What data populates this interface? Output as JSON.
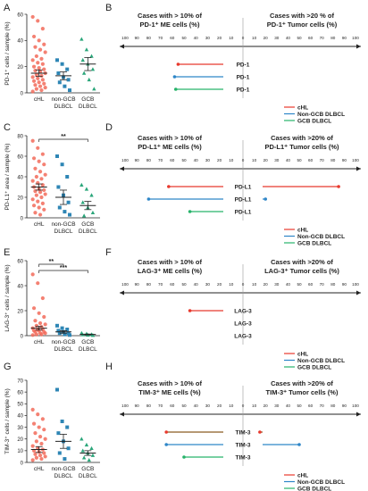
{
  "chart_data": [
    {
      "panel": "A",
      "type": "scatter",
      "ylabel": "PD-1⁺ cells / sample (%)",
      "ylim": [
        0,
        60
      ],
      "yticks": [
        0,
        20,
        40,
        60
      ],
      "categories": [
        "cHL",
        "non-GCB DLBCL",
        "GCB DLBCL"
      ],
      "colors": [
        "#f26b5b",
        "#2e86b5",
        "#2aa67a"
      ],
      "significance": [],
      "series": [
        {
          "values": [
            58,
            55,
            49,
            43,
            40,
            37,
            35,
            33,
            31,
            28,
            26,
            25,
            23,
            22,
            20,
            19,
            18,
            17,
            16,
            15,
            14,
            13,
            12,
            11,
            10,
            9,
            8,
            7,
            6,
            5,
            4,
            3,
            2,
            1
          ],
          "mean": 15,
          "sem": 2.5
        },
        {
          "values": [
            25,
            22,
            18,
            15,
            12,
            10,
            8,
            5,
            2
          ],
          "mean": 13,
          "sem": 3
        },
        {
          "values": [
            41,
            33,
            28,
            25,
            22,
            18,
            15,
            10,
            3
          ],
          "mean": 22,
          "sem": 5
        }
      ]
    },
    {
      "panel": "B",
      "type": "bar",
      "left_header": [
        "Cases with > 10% of",
        "PD-1⁺ ME cells (%)"
      ],
      "right_header": [
        "Cases with >20 % of",
        "PD-1⁺ Tumor cells (%)"
      ],
      "left_ticks": [
        100,
        90,
        80,
        70,
        60,
        50,
        40,
        30,
        20,
        10,
        0
      ],
      "right_ticks": [
        10,
        20,
        30,
        40,
        50,
        60,
        70,
        80,
        90,
        100
      ],
      "bars": [
        {
          "label": "PD-1",
          "left": 55,
          "right": 0,
          "color": "#e8392d"
        },
        {
          "label": "PD-1",
          "left": 58,
          "right": 0,
          "color": "#2e86c8"
        },
        {
          "label": "PD-1",
          "left": 57,
          "right": 0,
          "color": "#27b36a"
        }
      ],
      "legend": [
        {
          "name": "cHL",
          "color": "#e8392d"
        },
        {
          "name": "Non-GCB DLBCL",
          "color": "#2e86c8"
        },
        {
          "name": "GCB DLBCL",
          "color": "#27b36a"
        }
      ]
    },
    {
      "panel": "C",
      "type": "scatter",
      "ylabel": "PD-L1⁺ area / sample (%)",
      "ylim": [
        0,
        80
      ],
      "yticks": [
        0,
        20,
        40,
        60,
        80
      ],
      "categories": [
        "cHL",
        "non-GCB DLBCL",
        "GCB DLBCL"
      ],
      "colors": [
        "#f26b5b",
        "#2e86b5",
        "#2aa67a"
      ],
      "significance": [
        {
          "from": 0,
          "to": 2,
          "label": "**"
        }
      ],
      "series": [
        {
          "values": [
            75,
            68,
            62,
            58,
            55,
            52,
            48,
            45,
            42,
            40,
            38,
            36,
            34,
            32,
            30,
            28,
            27,
            26,
            25,
            23,
            22,
            20,
            18,
            16,
            14,
            12,
            10,
            8,
            5,
            3
          ],
          "mean": 30,
          "sem": 3
        },
        {
          "values": [
            60,
            52,
            40,
            30,
            22,
            15,
            10,
            6,
            3
          ],
          "mean": 20,
          "sem": 7
        },
        {
          "values": [
            32,
            28,
            22,
            15,
            10,
            5,
            2
          ],
          "mean": 12,
          "sem": 4
        }
      ]
    },
    {
      "panel": "D",
      "type": "bar",
      "left_header": [
        "Cases with > 10% of",
        "PD-L1⁺ ME cells (%)"
      ],
      "right_header": [
        "Cases with >20% of",
        "PD-L1⁺ Tumor cells (%)"
      ],
      "left_ticks": [
        100,
        90,
        80,
        70,
        60,
        50,
        40,
        30,
        20,
        10,
        0
      ],
      "right_ticks": [
        10,
        20,
        30,
        40,
        50,
        60,
        70,
        80,
        90,
        100
      ],
      "bars": [
        {
          "label": "PD-L1",
          "left": 63,
          "right": 85,
          "color": "#e8392d"
        },
        {
          "label": "PD-L1",
          "left": 80,
          "right": 20,
          "color": "#2e86c8"
        },
        {
          "label": "PD-L1",
          "left": 45,
          "right": 0,
          "color": "#27b36a"
        }
      ],
      "legend": [
        {
          "name": "cHL",
          "color": "#e8392d"
        },
        {
          "name": "Non-GCB DLBCL",
          "color": "#2e86c8"
        },
        {
          "name": "GCB DLBCL",
          "color": "#27b36a"
        }
      ]
    },
    {
      "panel": "E",
      "type": "scatter",
      "ylabel": "LAG-3⁺ cells / sample (%)",
      "ylim": [
        0,
        60
      ],
      "yticks": [
        0,
        20,
        40,
        60
      ],
      "categories": [
        "cHL",
        "non-GCB DLBCL",
        "GCB DLBCL"
      ],
      "colors": [
        "#f26b5b",
        "#2e86b5",
        "#2aa67a"
      ],
      "significance": [
        {
          "from": 0,
          "to": 1,
          "label": "**"
        },
        {
          "from": 0,
          "to": 2,
          "label": "***"
        }
      ],
      "series": [
        {
          "values": [
            49,
            42,
            30,
            22,
            18,
            15,
            12,
            10,
            9,
            8,
            7,
            6,
            5,
            5,
            4,
            4,
            3,
            3,
            2,
            2,
            1,
            1,
            0.5
          ],
          "mean": 6,
          "sem": 1.5
        },
        {
          "values": [
            8,
            6,
            5,
            4,
            3,
            2,
            2,
            1,
            0.5
          ],
          "mean": 3,
          "sem": 1
        },
        {
          "values": [
            2,
            1.5,
            1,
            0.8,
            0.5,
            0.3
          ],
          "mean": 1,
          "sem": 0.3
        }
      ]
    },
    {
      "panel": "F",
      "type": "bar",
      "left_header": [
        "Cases with > 10% of",
        "LAG-3⁺ ME cells (%)"
      ],
      "right_header": [
        "Cases with >20% of",
        "LAG-3⁺ Tumor cells (%)"
      ],
      "left_ticks": [
        100,
        90,
        80,
        70,
        60,
        50,
        40,
        30,
        20,
        10,
        0
      ],
      "right_ticks": [
        10,
        20,
        30,
        40,
        50,
        60,
        70,
        80,
        90,
        100
      ],
      "bars": [
        {
          "label": "LAG-3",
          "left": 45,
          "right": 0,
          "color": "#e8392d"
        },
        {
          "label": "LAG-3",
          "left": 0,
          "right": 0,
          "color": "#2e86c8"
        },
        {
          "label": "LAG-3",
          "left": 0,
          "right": 0,
          "color": "#27b36a"
        }
      ],
      "legend": [
        {
          "name": "cHL",
          "color": "#e8392d"
        },
        {
          "name": "Non-GCB DLBCL",
          "color": "#2e86c8"
        },
        {
          "name": "GCB DLBCL",
          "color": "#27b36a"
        }
      ]
    },
    {
      "panel": "G",
      "type": "scatter",
      "ylabel": "TIM-3⁺ cells / sample (%)",
      "ylim": [
        0,
        70
      ],
      "yticks": [
        0,
        10,
        20,
        30,
        40,
        50,
        60,
        70
      ],
      "categories": [
        "cHL",
        "non-GCB DLBCL",
        "GCB DLBCL"
      ],
      "colors": [
        "#f26b5b",
        "#2e86b5",
        "#2aa67a"
      ],
      "significance": [],
      "series": [
        {
          "values": [
            45,
            41,
            37,
            33,
            30,
            28,
            25,
            22,
            20,
            18,
            16,
            14,
            12,
            11,
            10,
            9,
            8,
            7,
            6,
            5,
            4,
            3,
            2
          ],
          "mean": 11,
          "sem": 2.5
        },
        {
          "values": [
            62,
            35,
            30,
            25,
            18,
            12,
            8,
            3
          ],
          "mean": 18,
          "sem": 6
        },
        {
          "values": [
            20,
            15,
            12,
            10,
            8,
            6,
            4,
            2
          ],
          "mean": 8,
          "sem": 2
        }
      ]
    },
    {
      "panel": "H",
      "type": "bar",
      "left_header": [
        "Cases with > 10% of",
        "TIM-3⁺ ME cells (%)"
      ],
      "right_header": [
        "Cases with >20% of",
        "TIM-3⁺ Tumor cells (%)"
      ],
      "left_ticks": [
        100,
        90,
        80,
        70,
        60,
        50,
        40,
        30,
        20,
        10,
        0
      ],
      "right_ticks": [
        10,
        20,
        30,
        40,
        50,
        60,
        70,
        80,
        90,
        100
      ],
      "bars": [
        {
          "label": "TIM-3",
          "left": 65,
          "right": 15,
          "color": "#e8392d",
          "line": "#8a5a22"
        },
        {
          "label": "TIM-3",
          "left": 65,
          "right": 50,
          "color": "#2e86c8",
          "line": "#2e86c8"
        },
        {
          "label": "TIM-3",
          "left": 50,
          "right": 0,
          "color": "#27b36a",
          "line": "#27b36a"
        }
      ],
      "legend": [
        {
          "name": "cHL",
          "color": "#e8392d"
        },
        {
          "name": "Non-GCB DLBCL",
          "color": "#2e86c8"
        },
        {
          "name": "GCB DLBCL",
          "color": "#27b36a"
        }
      ]
    }
  ]
}
